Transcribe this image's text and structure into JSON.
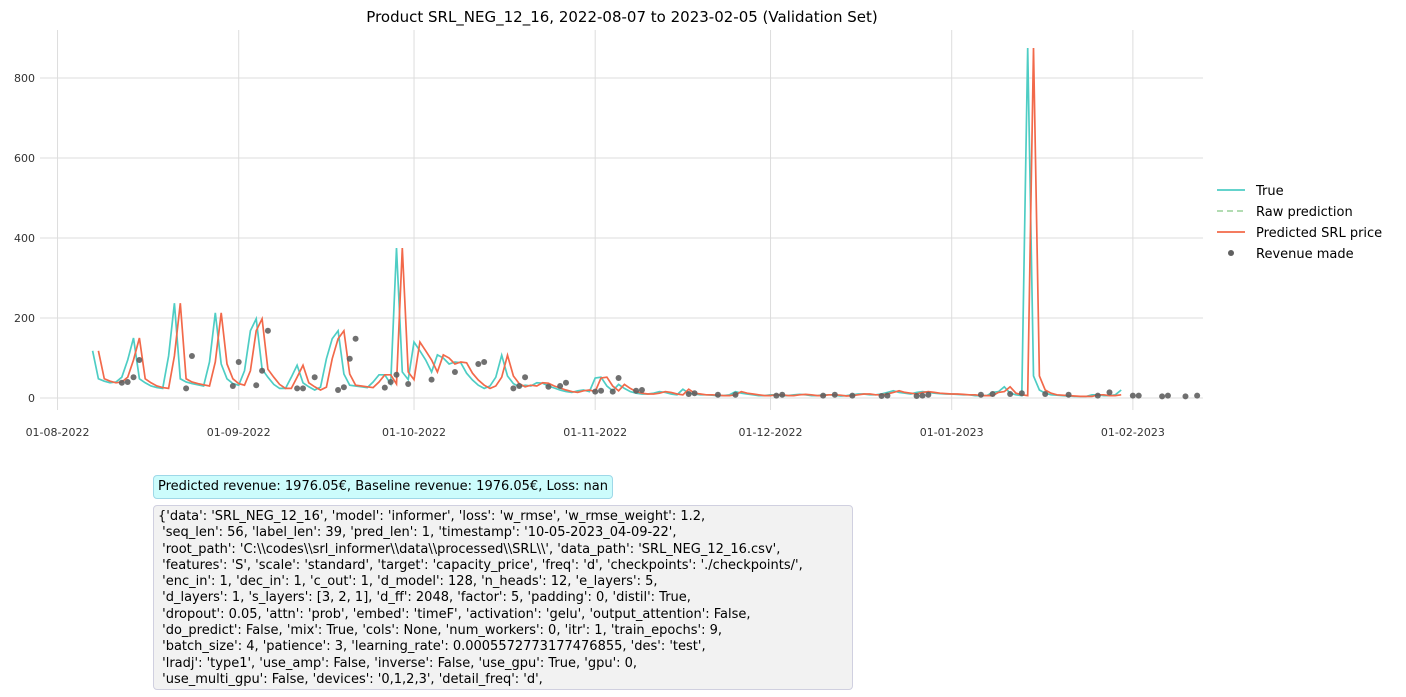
{
  "chart_data": {
    "type": "line",
    "title": "Product SRL_NEG_12_16, 2022-08-07 to 2023-02-05 (Validation Set)",
    "xlabel": "",
    "ylabel": "",
    "x_tick_labels": [
      "01-08-2022",
      "01-09-2022",
      "01-10-2022",
      "01-11-2022",
      "01-12-2022",
      "01-01-2023",
      "01-02-2023"
    ],
    "y_ticks": [
      0,
      200,
      400,
      600,
      800
    ],
    "ylim": [
      -30,
      920
    ],
    "xlim": [
      "2022-07-29",
      "2023-02-13"
    ],
    "grid": true,
    "legend_position": "right",
    "series": [
      {
        "name": "True",
        "color": "#4ecdc4",
        "style": "solid",
        "start_date": "2022-08-07",
        "values": [
          118,
          48,
          42,
          38,
          40,
          52,
          95,
          150,
          48,
          38,
          30,
          26,
          24,
          105,
          237,
          48,
          40,
          36,
          33,
          30,
          90,
          213,
          85,
          48,
          36,
          32,
          68,
          168,
          198,
          72,
          52,
          34,
          24,
          24,
          52,
          82,
          38,
          28,
          20,
          27,
          98,
          148,
          168,
          60,
          32,
          30,
          28,
          26,
          40,
          58,
          58,
          35,
          375,
          65,
          46,
          140,
          118,
          95,
          65,
          108,
          100,
          85,
          90,
          88,
          62,
          45,
          32,
          24,
          30,
          52,
          107,
          55,
          36,
          28,
          32,
          30,
          38,
          37,
          30,
          25,
          20,
          16,
          14,
          18,
          20,
          16,
          50,
          52,
          30,
          18,
          34,
          24,
          16,
          12,
          10,
          10,
          12,
          16,
          14,
          10,
          8,
          22,
          12,
          10,
          8,
          8,
          7,
          6,
          6,
          8,
          16,
          12,
          10,
          8,
          6,
          6,
          8,
          8,
          6,
          6,
          8,
          9,
          8,
          6,
          6,
          8,
          8,
          7,
          5,
          6,
          8,
          10,
          10,
          8,
          8,
          10,
          14,
          18,
          14,
          12,
          10,
          14,
          16,
          14,
          12,
          11,
          10,
          10,
          9,
          8,
          8,
          6,
          6,
          6,
          14,
          16,
          28,
          12,
          8,
          6,
          875,
          55,
          20,
          12,
          8,
          7,
          6,
          5,
          4,
          4,
          4,
          8,
          8,
          6,
          6,
          8,
          20
        ]
      },
      {
        "name": "Raw prediction",
        "color": "#a8d8a8",
        "style": "dashed",
        "values": []
      },
      {
        "name": "Predicted SRL price",
        "color": "#f2694a",
        "style": "solid",
        "start_date": "2022-08-08",
        "values": [
          118,
          48,
          42,
          38,
          40,
          52,
          95,
          150,
          48,
          38,
          30,
          26,
          24,
          105,
          237,
          48,
          40,
          36,
          33,
          30,
          90,
          213,
          85,
          48,
          36,
          32,
          68,
          168,
          198,
          72,
          52,
          34,
          24,
          24,
          52,
          82,
          38,
          28,
          20,
          27,
          98,
          148,
          168,
          60,
          32,
          30,
          28,
          26,
          40,
          58,
          58,
          35,
          375,
          65,
          46,
          140,
          118,
          95,
          65,
          108,
          100,
          85,
          90,
          88,
          62,
          45,
          32,
          24,
          30,
          52,
          107,
          55,
          36,
          28,
          32,
          30,
          38,
          37,
          30,
          25,
          20,
          16,
          14,
          18,
          20,
          16,
          50,
          52,
          30,
          18,
          34,
          24,
          16,
          12,
          10,
          10,
          12,
          16,
          14,
          10,
          8,
          22,
          12,
          10,
          8,
          8,
          7,
          6,
          6,
          8,
          16,
          12,
          10,
          8,
          6,
          6,
          8,
          8,
          6,
          6,
          8,
          9,
          8,
          6,
          6,
          8,
          8,
          7,
          5,
          6,
          8,
          10,
          10,
          8,
          8,
          10,
          14,
          18,
          14,
          12,
          10,
          14,
          16,
          14,
          12,
          11,
          10,
          10,
          9,
          8,
          8,
          6,
          6,
          6,
          14,
          16,
          28,
          12,
          8,
          6,
          875,
          55,
          20,
          12,
          8,
          7,
          6,
          5,
          4,
          4,
          4,
          8,
          8,
          6,
          6,
          8
        ]
      },
      {
        "name": "Revenue made",
        "color": "#606060",
        "style": "markers",
        "points": [
          [
            "2022-08-12",
            38
          ],
          [
            "2022-08-13",
            40
          ],
          [
            "2022-08-14",
            52
          ],
          [
            "2022-08-15",
            95
          ],
          [
            "2022-08-23",
            24
          ],
          [
            "2022-08-24",
            105
          ],
          [
            "2022-08-31",
            30
          ],
          [
            "2022-09-01",
            90
          ],
          [
            "2022-09-04",
            32
          ],
          [
            "2022-09-05",
            68
          ],
          [
            "2022-09-06",
            168
          ],
          [
            "2022-09-11",
            24
          ],
          [
            "2022-09-12",
            24
          ],
          [
            "2022-09-14",
            52
          ],
          [
            "2022-09-18",
            20
          ],
          [
            "2022-09-19",
            27
          ],
          [
            "2022-09-20",
            98
          ],
          [
            "2022-09-21",
            148
          ],
          [
            "2022-09-26",
            26
          ],
          [
            "2022-09-27",
            40
          ],
          [
            "2022-09-28",
            58
          ],
          [
            "2022-09-30",
            35
          ],
          [
            "2022-10-04",
            46
          ],
          [
            "2022-10-08",
            65
          ],
          [
            "2022-10-12",
            85
          ],
          [
            "2022-10-13",
            90
          ],
          [
            "2022-10-18",
            24
          ],
          [
            "2022-10-19",
            30
          ],
          [
            "2022-10-20",
            52
          ],
          [
            "2022-10-24",
            28
          ],
          [
            "2022-10-26",
            30
          ],
          [
            "2022-10-27",
            38
          ],
          [
            "2022-11-01",
            16
          ],
          [
            "2022-11-02",
            18
          ],
          [
            "2022-11-04",
            16
          ],
          [
            "2022-11-05",
            50
          ],
          [
            "2022-11-08",
            18
          ],
          [
            "2022-11-09",
            20
          ],
          [
            "2022-11-17",
            10
          ],
          [
            "2022-11-18",
            12
          ],
          [
            "2022-11-22",
            8
          ],
          [
            "2022-11-25",
            8
          ],
          [
            "2022-12-02",
            6
          ],
          [
            "2022-12-03",
            8
          ],
          [
            "2022-12-10",
            6
          ],
          [
            "2022-12-12",
            8
          ],
          [
            "2022-12-15",
            6
          ],
          [
            "2022-12-20",
            5
          ],
          [
            "2022-12-21",
            6
          ],
          [
            "2022-12-26",
            5
          ],
          [
            "2022-12-27",
            6
          ],
          [
            "2022-12-28",
            8
          ],
          [
            "2023-01-06",
            8
          ],
          [
            "2023-01-08",
            10
          ],
          [
            "2023-01-11",
            10
          ],
          [
            "2023-01-13",
            12
          ],
          [
            "2023-01-17",
            10
          ],
          [
            "2023-01-21",
            8
          ],
          [
            "2023-01-26",
            6
          ],
          [
            "2023-01-28",
            14
          ],
          [
            "2023-02-01",
            6
          ],
          [
            "2023-02-02",
            6
          ],
          [
            "2023-02-06",
            4
          ],
          [
            "2023-02-07",
            6
          ],
          [
            "2023-02-10",
            4
          ],
          [
            "2023-02-12",
            6
          ]
        ]
      }
    ]
  },
  "annotations": {
    "revenue_text": "Predicted revenue: 1976.05€, Baseline revenue: 1976.05€, Loss: nan",
    "config_lines": [
      "{'data': 'SRL_NEG_12_16', 'model': 'informer', 'loss': 'w_rmse', 'w_rmse_weight': 1.2,",
      " 'seq_len': 56, 'label_len': 39, 'pred_len': 1, 'timestamp': '10-05-2023_04-09-22',",
      " 'root_path': 'C:\\\\codes\\\\srl_informer\\\\data\\\\processed\\\\SRL\\\\', 'data_path': 'SRL_NEG_12_16.csv',",
      " 'features': 'S', 'scale': 'standard', 'target': 'capacity_price', 'freq': 'd', 'checkpoints': './checkpoints/',",
      " 'enc_in': 1, 'dec_in': 1, 'c_out': 1, 'd_model': 128, 'n_heads': 12, 'e_layers': 5,",
      " 'd_layers': 1, 's_layers': [3, 2, 1], 'd_ff': 2048, 'factor': 5, 'padding': 0, 'distil': True,",
      " 'dropout': 0.05, 'attn': 'prob', 'embed': 'timeF', 'activation': 'gelu', 'output_attention': False,",
      " 'do_predict': False, 'mix': True, 'cols': None, 'num_workers': 0, 'itr': 1, 'train_epochs': 9,",
      " 'batch_size': 4, 'patience': 3, 'learning_rate': 0.0005572773177476855, 'des': 'test',",
      " 'lradj': 'type1', 'use_amp': False, 'inverse': False, 'use_gpu': True, 'gpu': 0,",
      " 'use_multi_gpu': False, 'devices': '0,1,2,3', 'detail_freq': 'd',"
    ]
  }
}
